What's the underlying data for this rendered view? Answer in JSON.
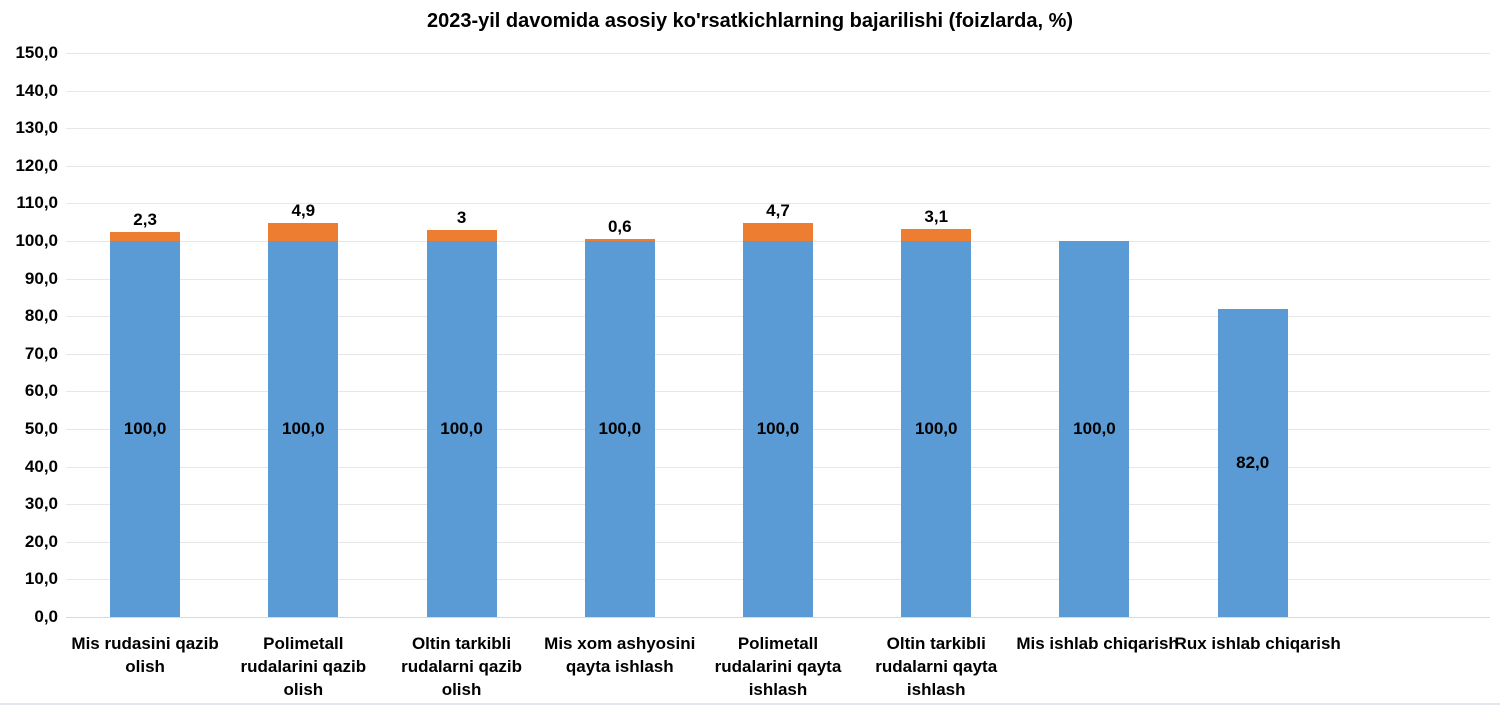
{
  "chart_data": {
    "type": "bar",
    "stacked": true,
    "title": "2023-yil davomida asosiy ko'rsatkichlarning bajarilishi (foizlarda, %)",
    "categories": [
      "Mis rudasini qazib olish",
      "Polimetall rudalarini qazib olish",
      "Oltin tarkibli rudalarni qazib olish",
      "Mis xom ashyosini qayta ishlash",
      "Polimetall rudalarini qayta ishlash",
      "Oltin tarkibli rudalarni qayta ishlash",
      "Mis ishlab chiqarish",
      "Rux ishlab chiqarish"
    ],
    "series": [
      {
        "color": "#5b9bd5",
        "values": [
          100.0,
          100.0,
          100.0,
          100.0,
          100.0,
          100.0,
          100.0,
          82.0
        ],
        "labels": [
          "100,0",
          "100,0",
          "100,0",
          "100,0",
          "100,0",
          "100,0",
          "100,0",
          "82,0"
        ]
      },
      {
        "color": "#ed7d31",
        "values": [
          2.3,
          4.9,
          3.0,
          0.6,
          4.7,
          3.1,
          0,
          0
        ],
        "labels": [
          "2,3",
          "4,9",
          "3",
          "0,6",
          "4,7",
          "3,1",
          "",
          ""
        ]
      }
    ],
    "ylim": [
      0,
      150
    ],
    "ytick_step": 10,
    "ytick_labels": [
      "0,0",
      "10,0",
      "20,0",
      "30,0",
      "40,0",
      "50,0",
      "60,0",
      "70,0",
      "80,0",
      "90,0",
      "100,0",
      "110,0",
      "120,0",
      "130,0",
      "140,0",
      "150,0"
    ],
    "xlabel": "",
    "ylabel": "",
    "grid": true,
    "legend": "none",
    "x_slots": 9
  }
}
